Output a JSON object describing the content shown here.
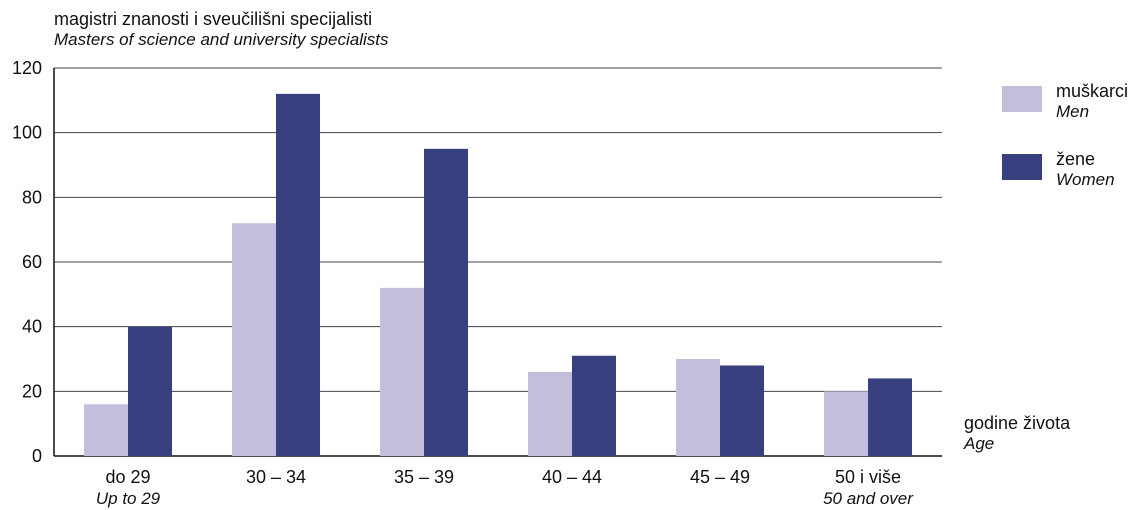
{
  "chart_data": {
    "type": "bar",
    "title": "magistri znanosti i sveučilišni specijalisti",
    "subtitle": "Masters of science and university specialists",
    "categories": [
      "do 29",
      "30 – 34",
      "35 – 39",
      "40 – 44",
      "45 – 49",
      "50 i više"
    ],
    "category_subtitles": [
      "Up to 29",
      "",
      "",
      "",
      "",
      "50 and over"
    ],
    "series": [
      {
        "name": "muškarci",
        "name_en": "Men",
        "color": "#c4bddb",
        "values": [
          16,
          72,
          52,
          26,
          30,
          20
        ]
      },
      {
        "name": "žene",
        "name_en": "Women",
        "color": "#383f7e",
        "values": [
          40,
          112,
          95,
          31,
          28,
          24
        ]
      }
    ],
    "ylim": [
      0,
      120
    ],
    "yticks": [
      0,
      20,
      40,
      60,
      80,
      100,
      120
    ],
    "xlabel": "godine života",
    "xlabel_en": "Age",
    "grid": true,
    "legend_position": "right"
  }
}
